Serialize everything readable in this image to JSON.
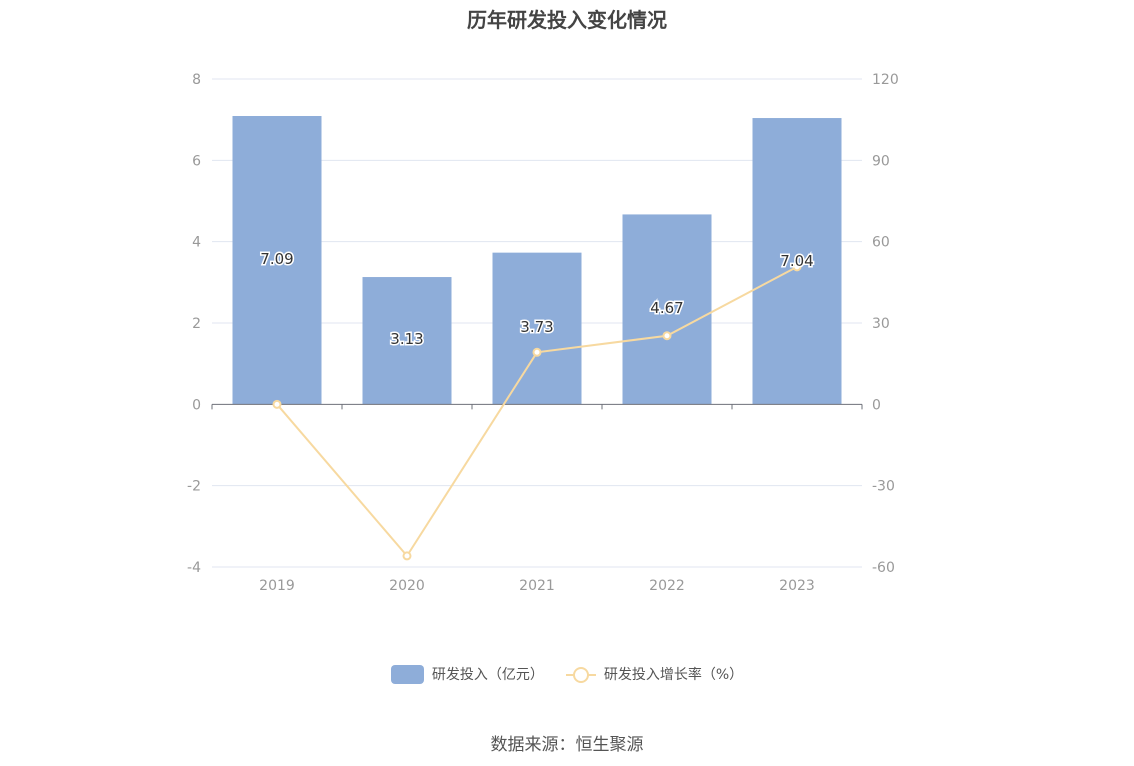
{
  "chart_data": {
    "type": "bar",
    "title": "历年研发投入变化情况",
    "categories": [
      "2019",
      "2020",
      "2021",
      "2022",
      "2023"
    ],
    "series": [
      {
        "name": "研发投入（亿元）",
        "kind": "bar",
        "axis": "left",
        "values": [
          7.09,
          3.13,
          3.73,
          4.67,
          7.04
        ],
        "color": "#8eadd9"
      },
      {
        "name": "研发投入增长率（%）",
        "kind": "line",
        "axis": "right",
        "values": [
          0,
          -55.9,
          19.2,
          25.3,
          50.7
        ],
        "color": "#f7d9a0"
      }
    ],
    "y_left": {
      "min": -4,
      "max": 8,
      "ticks": [
        "-4",
        "-2",
        "0",
        "2",
        "4",
        "6",
        "8"
      ]
    },
    "y_right": {
      "min": -60,
      "max": 120,
      "ticks": [
        "-60",
        "-30",
        "0",
        "30",
        "60",
        "90",
        "120"
      ]
    },
    "bar_labels": [
      "7.09",
      "3.13",
      "3.73",
      "4.67",
      "7.04"
    ],
    "grid": true,
    "legend_position": "bottom"
  },
  "source": "数据来源：恒生聚源",
  "colors": {
    "bar": "#8eadd9",
    "line": "#f7d9a0",
    "grid": "#e0e6f1",
    "axis": "#6e7079",
    "text": "#999999"
  }
}
